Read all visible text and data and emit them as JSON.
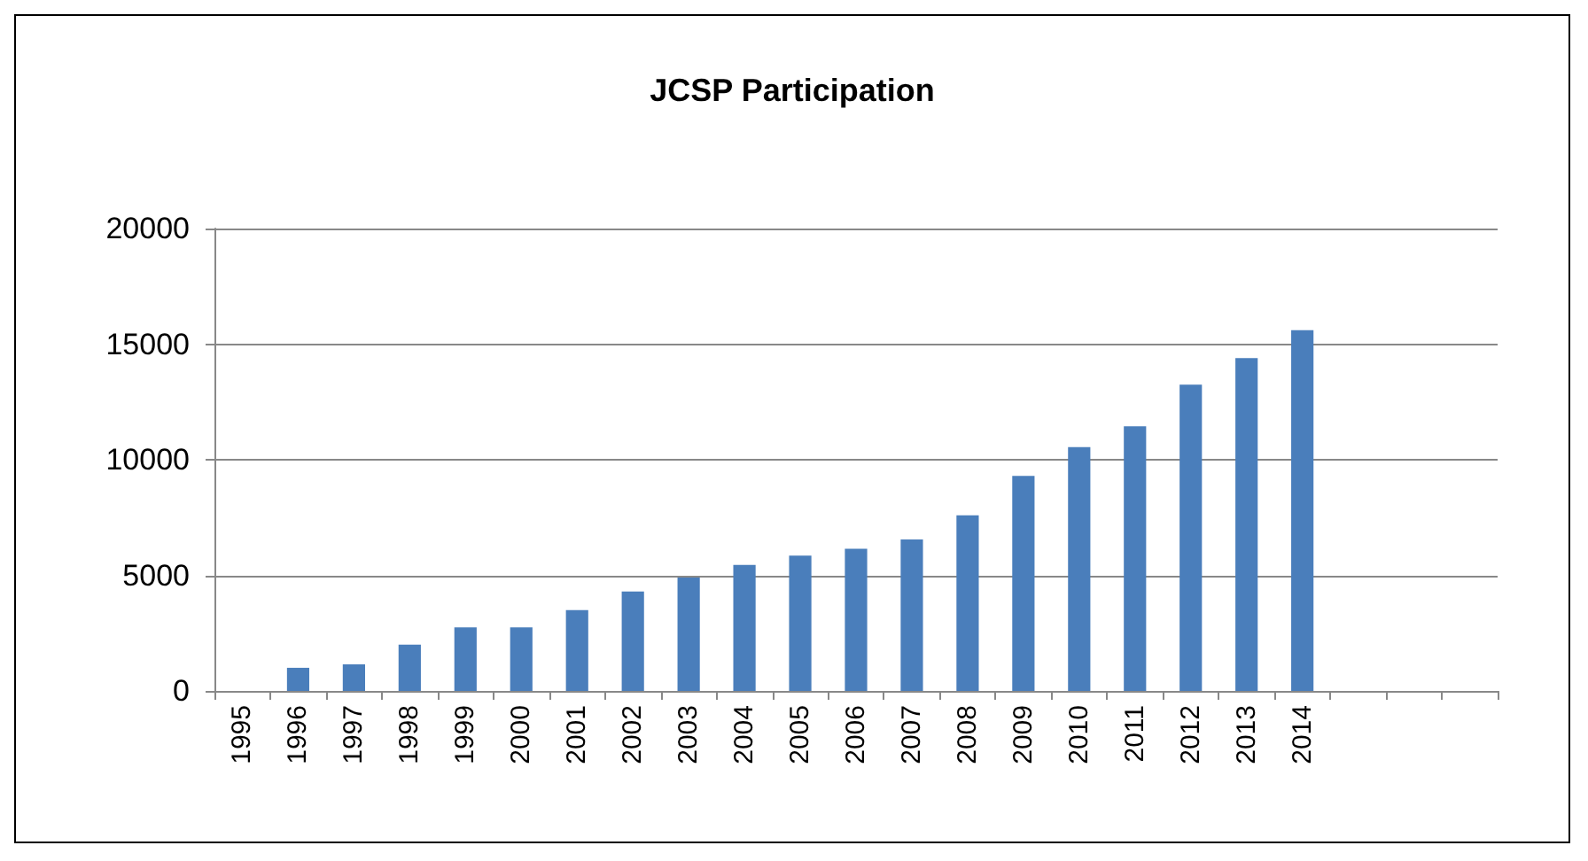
{
  "chart_data": {
    "type": "bar",
    "title": "JCSP Participation",
    "categories": [
      "1995",
      "1996",
      "1997",
      "1998",
      "1999",
      "2000",
      "2001",
      "2002",
      "2003",
      "2004",
      "2005",
      "2006",
      "2007",
      "2008",
      "2009",
      "2010",
      "2011",
      "2012",
      "2013",
      "2014",
      null,
      null,
      null
    ],
    "values": [
      null,
      1000,
      1150,
      2000,
      2750,
      2750,
      3500,
      4300,
      4900,
      5450,
      5850,
      6150,
      6550,
      7600,
      9300,
      10550,
      11450,
      13250,
      14400,
      15600,
      null,
      null,
      null
    ],
    "color": "#4a7ebb",
    "ylim": [
      0,
      20000
    ],
    "yticks": [
      0,
      5000,
      10000,
      15000,
      20000
    ],
    "grid": "y"
  }
}
